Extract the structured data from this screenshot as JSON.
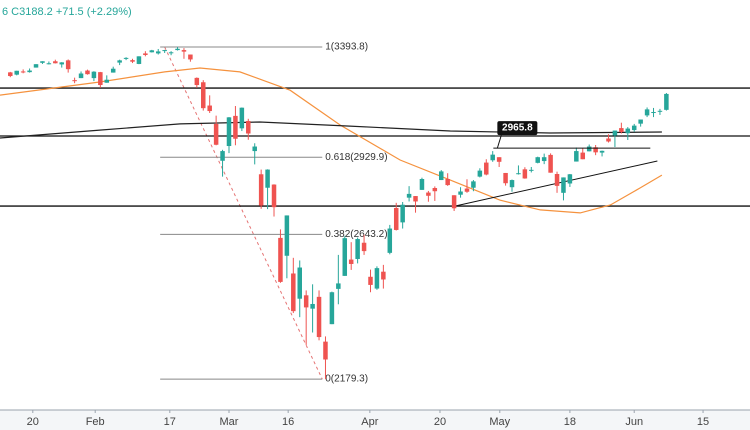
{
  "chart_data": {
    "type": "candlestick",
    "header": "6 C3188.2 +71.5 (+2.29%)",
    "log_scale": true,
    "ylim": [
      2091.3,
      3613.5
    ],
    "xlim": [
      -1.6,
      115
    ],
    "up_color": "#26a69a",
    "down_color": "#ef5350",
    "xticks": [
      {
        "value": 3.5,
        "label": "20"
      },
      {
        "value": 13.2,
        "label": "Feb"
      },
      {
        "value": 24.8,
        "label": "17"
      },
      {
        "value": 34,
        "label": "Mar"
      },
      {
        "value": 43.2,
        "label": "16"
      },
      {
        "value": 55.9,
        "label": "Apr"
      },
      {
        "value": 66.8,
        "label": "20"
      },
      {
        "value": 76.1,
        "label": "May"
      },
      {
        "value": 87,
        "label": "18"
      },
      {
        "value": 97,
        "label": "Jun"
      },
      {
        "value": 107.7,
        "label": "15"
      }
    ],
    "open": [
      3281,
      3271,
      3285,
      3282,
      3302,
      3323,
      3321,
      3330,
      3316,
      3334,
      3247,
      3256,
      3289,
      3256,
      3282,
      3236,
      3280,
      3324,
      3344,
      3335,
      3318,
      3365,
      3370,
      3365,
      3378,
      3370,
      3380,
      3380,
      3360,
      3257,
      3238,
      3139,
      3063,
      2916,
      2974,
      3096,
      3045,
      3075,
      2954,
      2864,
      2813,
      2825,
      2631,
      2569,
      2509,
      2426,
      2437,
      2394,
      2432,
      2291,
      2345,
      2458,
      2501,
      2556,
      2558,
      2614,
      2498,
      2459,
      2515,
      2579,
      2738,
      2686,
      2776,
      2782,
      2805,
      2795,
      2812,
      2842,
      2846,
      2785,
      2787,
      2810,
      2813,
      2855,
      2909,
      2918,
      2930,
      2869,
      2815,
      2868,
      2883,
      2879,
      2908,
      2915,
      2939,
      2865,
      2794,
      2829,
      2913,
      2948,
      2953,
      2969,
      2948,
      3004,
      3016,
      3046,
      3025,
      3038,
      3064,
      3098,
      3112,
      3114,
      3121
    ],
    "high": [
      3283,
      3288,
      3294,
      3298,
      3317,
      3330,
      3329,
      3337,
      3326,
      3338,
      3258,
      3285,
      3293,
      3286,
      3283,
      3268,
      3306,
      3337,
      3348,
      3341,
      3352,
      3375,
      3381,
      3385,
      3381,
      3375,
      3393.8,
      3389,
      3360,
      3259,
      3247,
      3182,
      3097,
      2959,
      3091,
      3137,
      3131,
      3084,
      2985,
      2882,
      2883,
      2826,
      2661,
      2711,
      2562,
      2553,
      2453,
      2473,
      2453,
      2307,
      2449,
      2572,
      2637,
      2616,
      2632,
      2642,
      2522,
      2533,
      2538,
      2677,
      2757,
      2760,
      2819,
      2782,
      2851,
      2801,
      2818,
      2880,
      2868,
      2785,
      2815,
      2845,
      2842,
      2887,
      2922,
      2954,
      2930,
      2869,
      2844,
      2898,
      2891,
      2892,
      2932,
      2944,
      2945,
      2874,
      2852,
      2865,
      2968,
      2965,
      2980,
      2978,
      2956,
      3021,
      3036,
      3068,
      3050,
      3063,
      3081,
      3131,
      3129,
      3125,
      3192
    ],
    "low": [
      3260,
      3268,
      3277,
      3280,
      3302,
      3318,
      3316,
      3320,
      3302,
      3280,
      3234,
      3256,
      3271,
      3243,
      3214,
      3236,
      3280,
      3313,
      3335,
      3322,
      3317,
      3352,
      3369,
      3360,
      3367,
      3357,
      3378,
      3341,
      3328,
      3214,
      3118,
      3108,
      2977,
      2855,
      2946,
      2977,
      3034,
      2999,
      2902,
      2735,
      2734,
      2707,
      2478,
      2493,
      2380,
      2367,
      2281,
      2319,
      2295,
      2179.3,
      2345,
      2408,
      2501,
      2521,
      2543,
      2572,
      2447,
      2455,
      2459,
      2574,
      2657,
      2664,
      2762,
      2721,
      2805,
      2761,
      2764,
      2842,
      2820,
      2727,
      2776,
      2794,
      2800,
      2852,
      2860,
      2912,
      2892,
      2821,
      2798,
      2863,
      2847,
      2871,
      2906,
      2903,
      2870,
      2794,
      2766,
      2816,
      2913,
      2922,
      2953,
      2938,
      2933,
      2988,
      2970,
      3024,
      2998,
      3031,
      3052,
      3091,
      3091,
      3100,
      3118
    ],
    "close": [
      3265,
      3288,
      3283,
      3289,
      3317,
      3330,
      3321,
      3321,
      3325,
      3295,
      3244,
      3276,
      3273,
      3284,
      3226,
      3249,
      3297,
      3334,
      3345,
      3328,
      3352,
      3358,
      3379,
      3374,
      3380,
      3370,
      3386,
      3373,
      3338,
      3226,
      3128,
      3116,
      2979,
      2954,
      3090,
      3003,
      3130,
      3024,
      2972,
      2747,
      2882,
      2741,
      2481,
      2711,
      2386,
      2529,
      2398,
      2409,
      2305,
      2237,
      2447,
      2476,
      2630,
      2541,
      2627,
      2585,
      2471,
      2527,
      2489,
      2664,
      2659,
      2750,
      2790,
      2762,
      2846,
      2783,
      2800,
      2875,
      2823,
      2737,
      2799,
      2798,
      2837,
      2878,
      2863,
      2940,
      2912,
      2830,
      2842,
      2868,
      2848,
      2881,
      2930,
      2930,
      2870,
      2820,
      2852,
      2864,
      2954,
      2922,
      2972,
      2949,
      2955,
      2992,
      3036,
      3030,
      3044,
      3056,
      3081,
      3123,
      3112,
      3117,
      3188
    ],
    "overlays": [
      {
        "color": "#f5923e",
        "x": [
          -1.6,
          13.9,
          24.0,
          29.5,
          35.7,
          43.5,
          51.3,
          60.6,
          68.4,
          76.1,
          82.4,
          88.6,
          93.3,
          97.9,
          101.3
        ],
        "values": [
          3183,
          3239,
          3283,
          3300,
          3283,
          3204,
          3058,
          2919,
          2842,
          2767,
          2731,
          2720,
          2749,
          2812,
          2861
        ]
      },
      {
        "color": "#222222",
        "x": [
          -1.6,
          13.9,
          26.4,
          38.8,
          52.8,
          68.4,
          83.9,
          101.3
        ],
        "values": [
          3006,
          3038,
          3063,
          3071,
          3054,
          3034,
          3026,
          3030
        ]
      }
    ],
    "horizontal_lines": [
      3213,
      3014,
      2745
    ],
    "trendline": {
      "x": [
        69.1,
        100.6
      ],
      "values": [
        2745,
        2915
      ]
    },
    "level": {
      "x": [
        75.1,
        99.5
      ],
      "value": 2965.8
    },
    "fib": {
      "x": [
        23.3,
        48.5
      ],
      "levels": [
        {
          "value": 3393.8,
          "label": "1(3393.8)"
        },
        {
          "value": 2929.9,
          "label": "0.618(2929.9)"
        },
        {
          "value": 2643.2,
          "label": "0.382(2643.2)"
        },
        {
          "value": 2179.3,
          "label": "0(2179.3)"
        }
      ],
      "diagonal_x": [
        24.0,
        48.5
      ],
      "diagonal_values": [
        3393.8,
        2179.3
      ]
    }
  }
}
